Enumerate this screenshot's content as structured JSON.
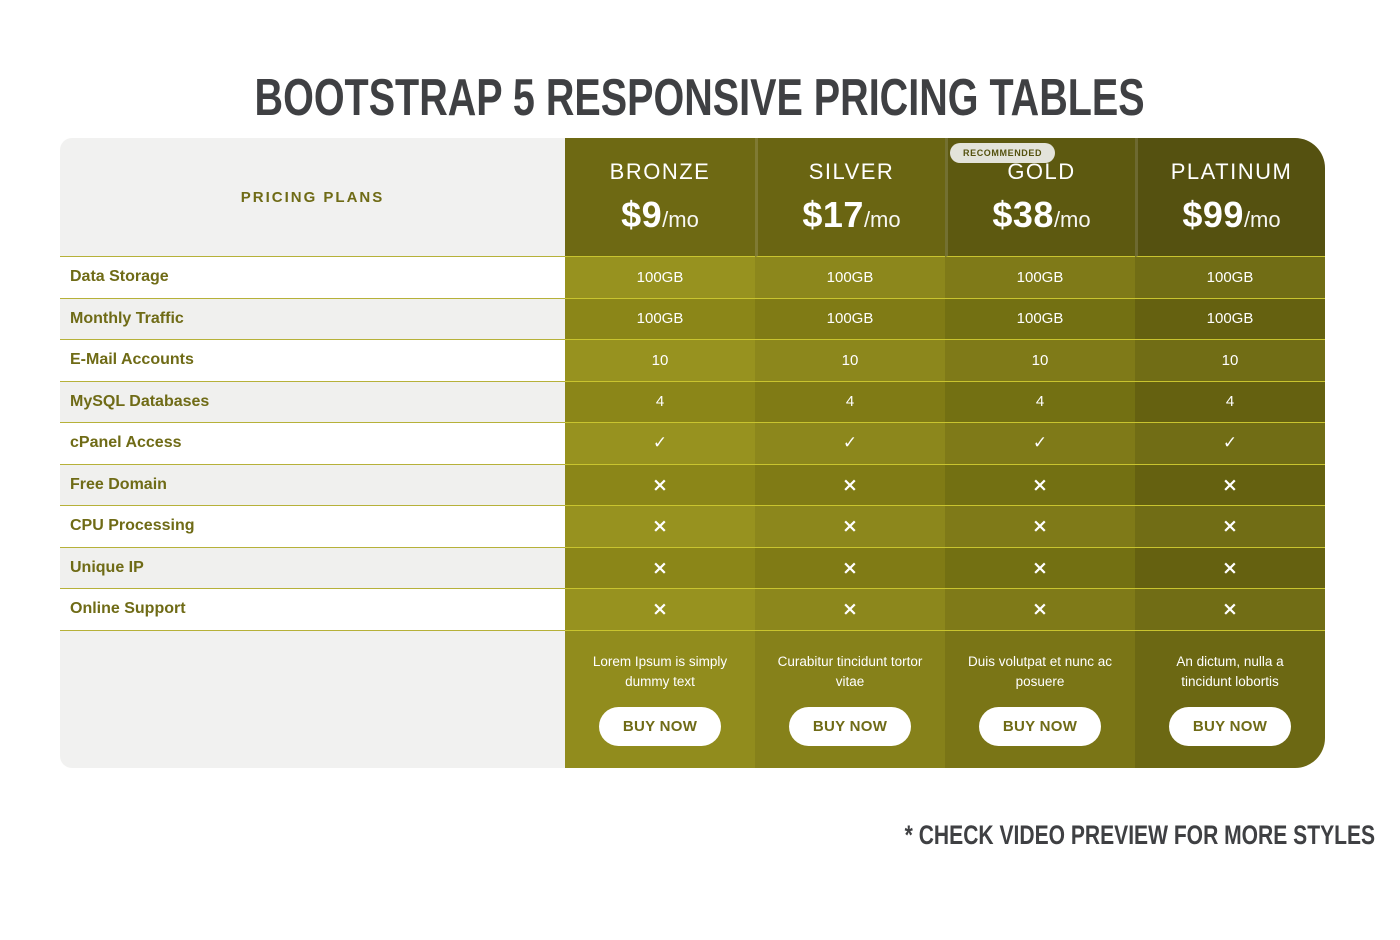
{
  "page": {
    "title": "BOOTSTRAP 5 RESPONSIVE PRICING TABLES",
    "footnote": "* CHECK VIDEO PREVIEW FOR MORE STYLES",
    "background": "#ffffff",
    "title_color": "#3f4043"
  },
  "icons": {
    "check": "✓",
    "cross": "×"
  },
  "table": {
    "corner_label": "PRICING PLANS",
    "recommended_badge_label": "RECOMMENDED",
    "features": [
      "Data Storage",
      "Monthly Traffic",
      "E-Mail Accounts",
      "MySQL Databases",
      "cPanel Access",
      "Free Domain",
      "CPU Processing",
      "Unique IP",
      "Online Support"
    ],
    "plans": [
      {
        "name": "BRONZE",
        "price": "$9",
        "period": "/mo",
        "recommended": false,
        "header_color": "#6e6913",
        "cell_color_odd": "#97921f",
        "cell_color_even": "#8b8618",
        "footer_color": "#918c1d",
        "values": [
          "100GB",
          "100GB",
          "10",
          "4",
          "check",
          "cross",
          "cross",
          "cross",
          "cross"
        ],
        "description": "Lorem Ipsum is simply dummy text",
        "cta_label": "BUY NOW"
      },
      {
        "name": "SILVER",
        "price": "$17",
        "period": "/mo",
        "recommended": false,
        "header_color": "#6a6512",
        "cell_color_odd": "#8c871c",
        "cell_color_even": "#807b15",
        "footer_color": "#86811a",
        "values": [
          "100GB",
          "100GB",
          "10",
          "4",
          "check",
          "cross",
          "cross",
          "cross",
          "cross"
        ],
        "description": "Curabitur tincidunt tortor vitae",
        "cta_label": "BUY NOW"
      },
      {
        "name": "GOLD",
        "price": "$38",
        "period": "/mo",
        "recommended": true,
        "header_color": "#5d5910",
        "cell_color_odd": "#7f7a18",
        "cell_color_even": "#737012",
        "footer_color": "#7a7516",
        "values": [
          "100GB",
          "100GB",
          "10",
          "4",
          "check",
          "cross",
          "cross",
          "cross",
          "cross"
        ],
        "description": "Duis volutpat et nunc ac posuere",
        "cta_label": "BUY NOW"
      },
      {
        "name": "PLATINUM",
        "price": "$99",
        "period": "/mo",
        "recommended": false,
        "header_color": "#555110",
        "cell_color_odd": "#716d15",
        "cell_color_even": "#656110",
        "footer_color": "#6c6813",
        "values": [
          "100GB",
          "100GB",
          "10",
          "4",
          "check",
          "cross",
          "cross",
          "cross",
          "cross"
        ],
        "description": "An dictum, nulla a tincidunt lobortis",
        "cta_label": "BUY NOW"
      }
    ],
    "colors": {
      "divider_colored": "#c9c42f",
      "divider_left": "#b6b139",
      "label_text": "#6f6b16",
      "panel_gray": "#f1f1f0",
      "row_stripe_light": "#ffffff",
      "row_stripe_dark": "#f0f0ee",
      "badge_bg": "#e3e3da",
      "badge_text": "#55520f",
      "button_bg": "#ffffff",
      "button_text": "#6f6b16"
    }
  }
}
